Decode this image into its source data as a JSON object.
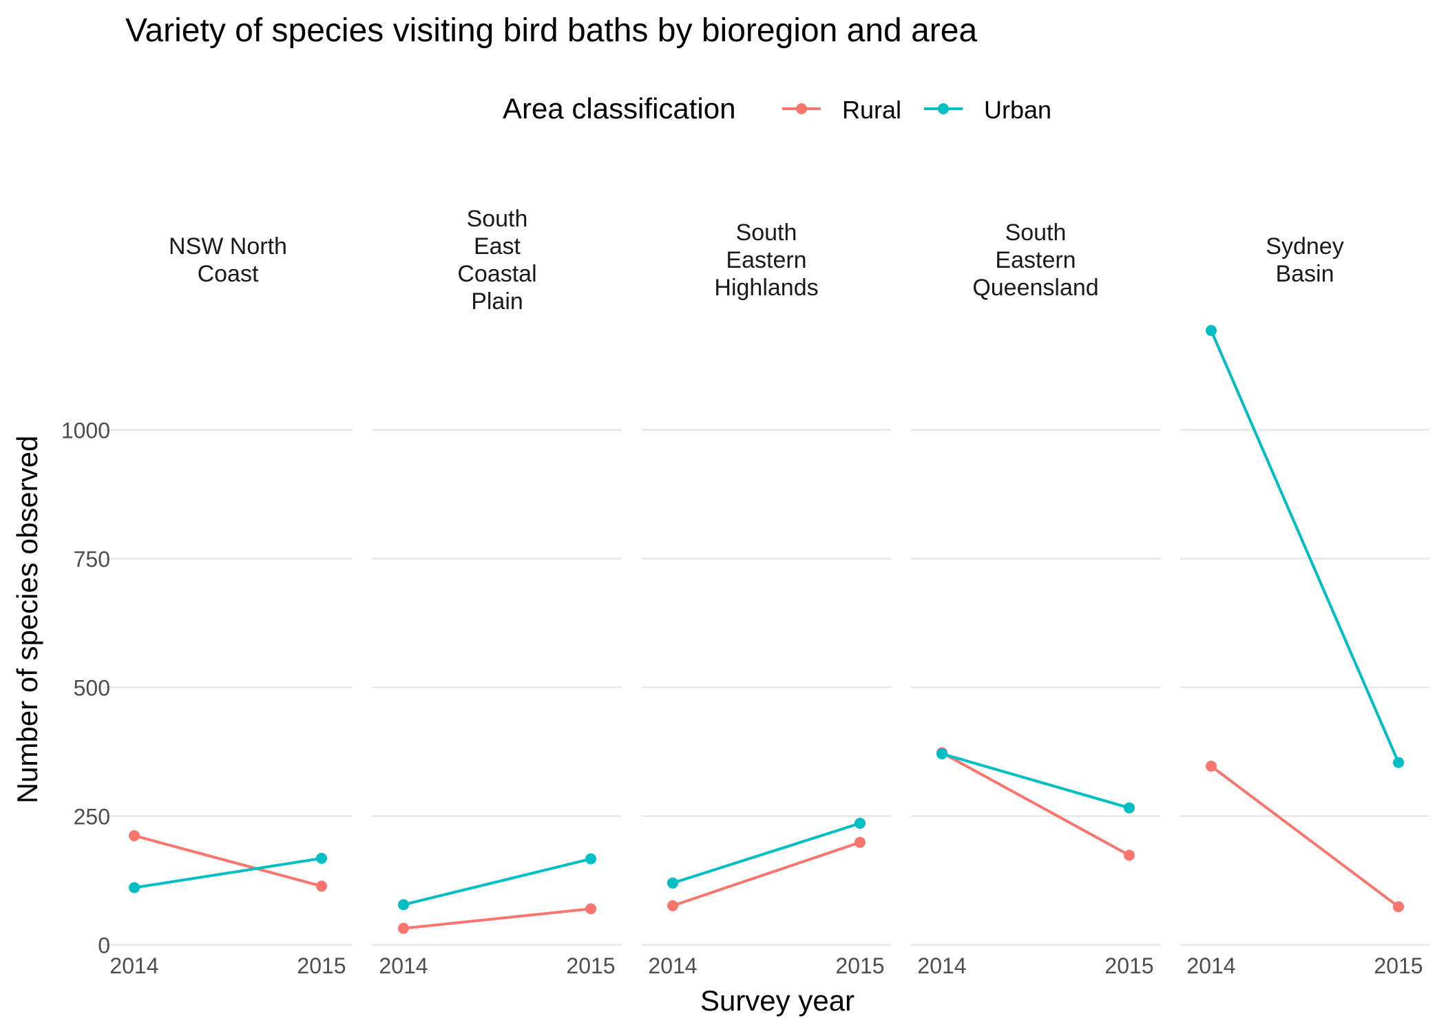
{
  "chart_data": {
    "type": "line",
    "title": "Variety of species visiting bird baths by bioregion and area",
    "xlabel": "Survey year",
    "ylabel": "Number of species observed",
    "legend": {
      "title": "Area classification",
      "placement": "top",
      "entries": [
        "Rural",
        "Urban"
      ]
    },
    "colors": {
      "Rural": "#F8766D",
      "Urban": "#00BFC4"
    },
    "grid": true,
    "ylim": [
      -30,
      1240
    ],
    "yticks": [
      0,
      250,
      500,
      750,
      1000
    ],
    "ytick_labels": [
      "0",
      "250",
      "500",
      "750",
      "1000"
    ],
    "x": [
      "2014",
      "2015"
    ],
    "facets": [
      {
        "name": "NSW North\nCoast",
        "series": [
          {
            "name": "Rural",
            "values": [
              212,
              114
            ]
          },
          {
            "name": "Urban",
            "values": [
              111,
              168
            ]
          }
        ]
      },
      {
        "name": "South\nEast\nCoastal\nPlain",
        "series": [
          {
            "name": "Rural",
            "values": [
              32,
              70
            ]
          },
          {
            "name": "Urban",
            "values": [
              78,
              167
            ]
          }
        ]
      },
      {
        "name": "South\nEastern\nHighlands",
        "series": [
          {
            "name": "Rural",
            "values": [
              76,
              199
            ]
          },
          {
            "name": "Urban",
            "values": [
              120,
              236
            ]
          }
        ]
      },
      {
        "name": "South\nEastern\nQueensland",
        "series": [
          {
            "name": "Rural",
            "values": [
              373,
              174
            ]
          },
          {
            "name": "Urban",
            "values": [
              371,
              266
            ]
          }
        ]
      },
      {
        "name": "Sydney\nBasin",
        "series": [
          {
            "name": "Rural",
            "values": [
              347,
              74
            ]
          },
          {
            "name": "Urban",
            "values": [
              1193,
              354
            ]
          }
        ]
      }
    ]
  }
}
